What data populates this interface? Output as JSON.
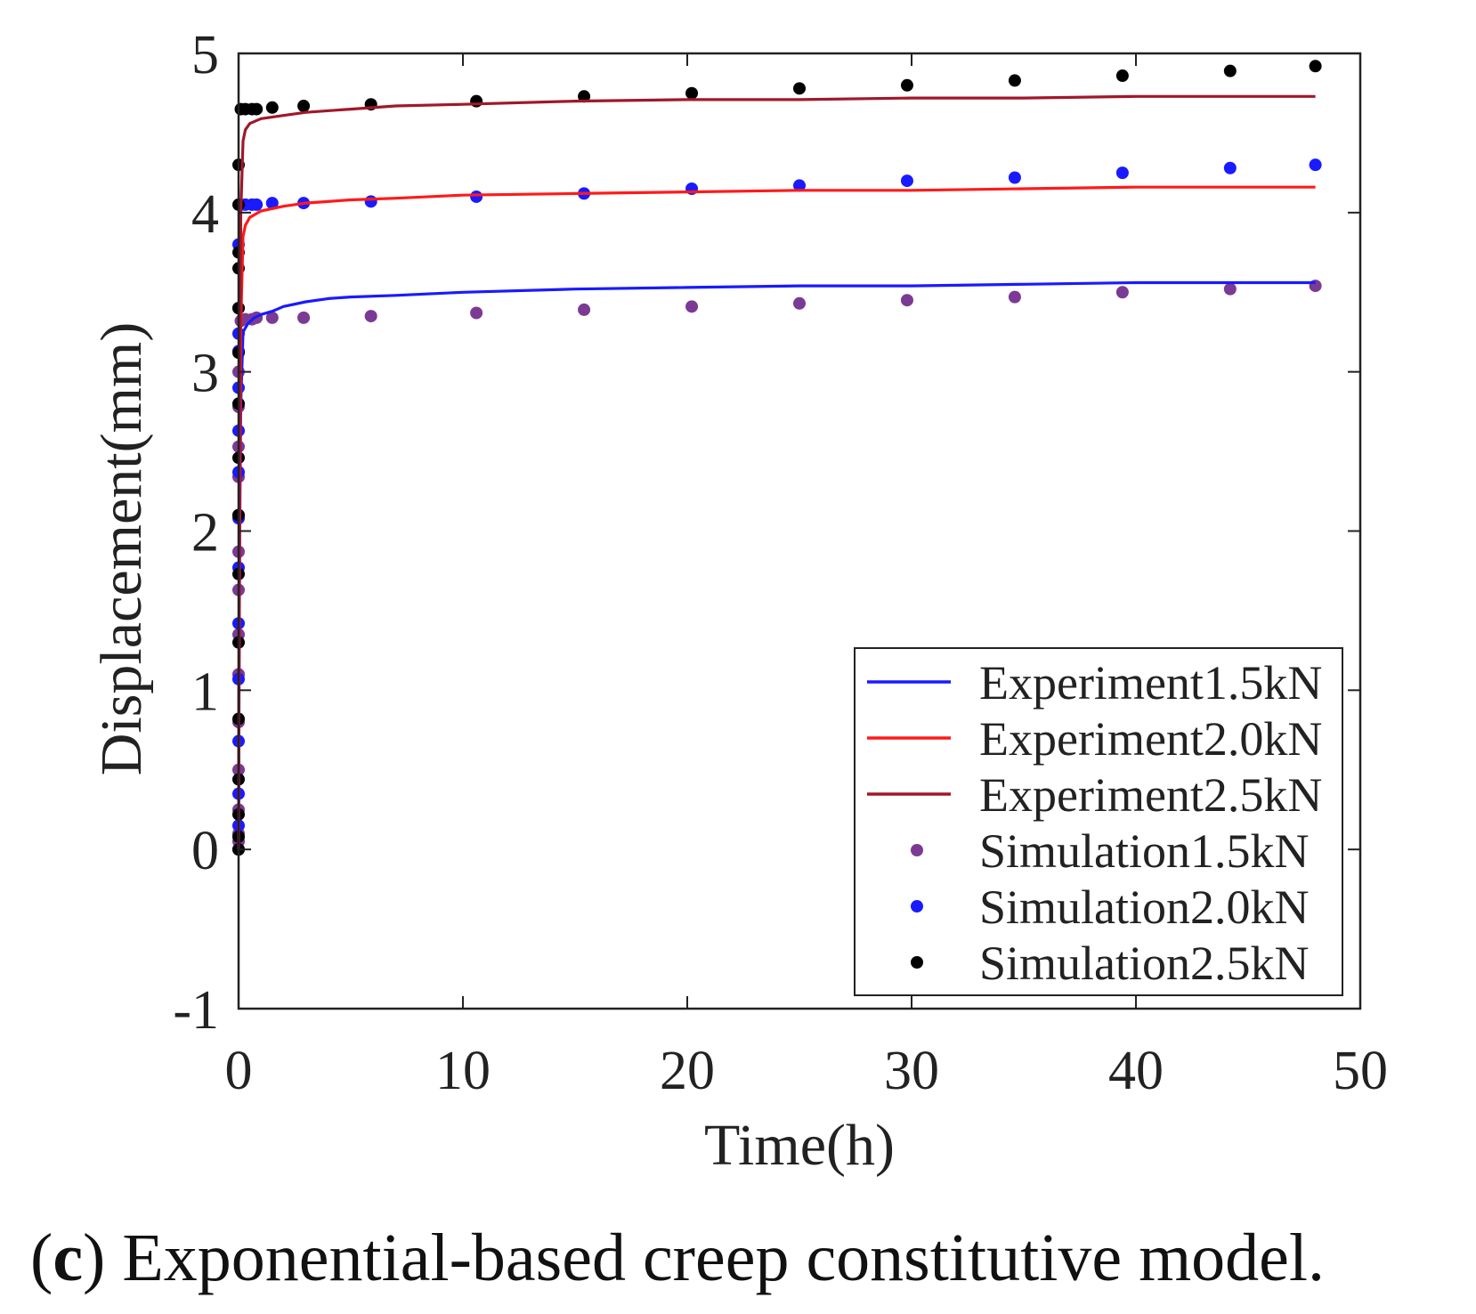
{
  "caption": {
    "open_paren": "(",
    "letter": "c",
    "close_paren": ")",
    "text": " Exponential-based creep constitutive model."
  },
  "chart_data": {
    "type": "line",
    "xlabel": "Time(h)",
    "ylabel": "Displacement(mm)",
    "xlim": [
      0,
      50
    ],
    "ylim": [
      -1,
      5
    ],
    "xticks": [
      0,
      10,
      20,
      30,
      40,
      50
    ],
    "yticks": [
      -1,
      0,
      1,
      2,
      3,
      4,
      5
    ],
    "xtick_labels": [
      "0",
      "10",
      "20",
      "30",
      "40",
      "50"
    ],
    "ytick_labels": [
      "-1",
      "0",
      "1",
      "2",
      "3",
      "4",
      "5"
    ],
    "grid": false,
    "legend_position": "bottom-right",
    "series": [
      {
        "name": "Experiment1.5kN",
        "kind": "line",
        "color": "#1a1aff",
        "x": [
          0,
          0.02,
          0.05,
          0.1,
          0.2,
          0.4,
          0.7,
          1.0,
          1.5,
          2,
          3,
          4,
          5,
          7,
          10,
          15,
          20,
          25,
          30,
          35,
          40,
          45,
          48
        ],
        "y": [
          0,
          1.0,
          2.0,
          2.8,
          3.25,
          3.3,
          3.34,
          3.36,
          3.38,
          3.41,
          3.44,
          3.46,
          3.47,
          3.48,
          3.5,
          3.52,
          3.53,
          3.54,
          3.54,
          3.55,
          3.56,
          3.56,
          3.56
        ]
      },
      {
        "name": "Experiment2.0kN",
        "kind": "line",
        "color": "#ff1a1a",
        "x": [
          0,
          0.02,
          0.05,
          0.1,
          0.2,
          0.3,
          0.5,
          1,
          2,
          3,
          5,
          7,
          10,
          15,
          20,
          25,
          30,
          35,
          40,
          45,
          48
        ],
        "y": [
          0,
          1.0,
          2.2,
          3.3,
          3.85,
          3.92,
          3.97,
          4.01,
          4.04,
          4.06,
          4.08,
          4.09,
          4.11,
          4.12,
          4.13,
          4.14,
          4.14,
          4.15,
          4.16,
          4.16,
          4.16
        ]
      },
      {
        "name": "Experiment2.5kN",
        "kind": "line",
        "color": "#a0182a",
        "x": [
          0,
          0.02,
          0.05,
          0.1,
          0.2,
          0.3,
          0.5,
          1,
          2,
          3,
          5,
          7,
          10,
          15,
          20,
          25,
          30,
          35,
          40,
          45,
          48
        ],
        "y": [
          0,
          1.2,
          2.8,
          4.0,
          4.45,
          4.52,
          4.56,
          4.59,
          4.61,
          4.63,
          4.65,
          4.67,
          4.68,
          4.7,
          4.71,
          4.71,
          4.72,
          4.72,
          4.73,
          4.73,
          4.73
        ]
      },
      {
        "name": "Simulation1.5kN",
        "kind": "scatter",
        "color": "#7b3a94",
        "x": [
          0,
          0,
          0,
          0,
          0,
          0,
          0,
          0,
          0,
          0,
          0,
          0,
          0,
          0,
          0,
          0.1,
          0.3,
          0.6,
          0.8,
          1.5,
          2.9,
          5.9,
          10.6,
          15.4,
          20.2,
          25,
          29.8,
          34.6,
          39.4,
          44.2,
          48
        ],
        "y": [
          0,
          0.05,
          0.1,
          0.25,
          0.5,
          0.8,
          1.1,
          1.35,
          1.63,
          1.87,
          2.1,
          2.34,
          2.53,
          2.78,
          3.0,
          3.32,
          3.33,
          3.33,
          3.34,
          3.34,
          3.34,
          3.35,
          3.37,
          3.39,
          3.41,
          3.43,
          3.45,
          3.47,
          3.5,
          3.52,
          3.54
        ]
      },
      {
        "name": "Simulation2.0kN",
        "kind": "scatter",
        "color": "#1a1aff",
        "x": [
          0,
          0,
          0,
          0,
          0,
          0,
          0,
          0,
          0,
          0,
          0,
          0,
          0,
          0,
          0,
          0.1,
          0.3,
          0.6,
          0.8,
          1.5,
          2.9,
          5.9,
          10.6,
          15.4,
          20.2,
          25,
          29.8,
          34.6,
          39.4,
          44.2,
          48
        ],
        "y": [
          0,
          0.15,
          0.35,
          0.68,
          1.07,
          1.42,
          1.77,
          2.08,
          2.37,
          2.63,
          2.9,
          3.13,
          3.24,
          3.4,
          3.8,
          4.05,
          4.05,
          4.05,
          4.05,
          4.06,
          4.06,
          4.07,
          4.1,
          4.12,
          4.15,
          4.17,
          4.2,
          4.22,
          4.25,
          4.28,
          4.3
        ]
      },
      {
        "name": "Simulation2.5kN",
        "kind": "scatter",
        "color": "#000000",
        "x": [
          0,
          0,
          0,
          0,
          0,
          0,
          0,
          0,
          0,
          0,
          0,
          0,
          0,
          0,
          0,
          0,
          0.1,
          0.3,
          0.6,
          0.8,
          1.5,
          2.9,
          5.9,
          10.6,
          15.4,
          20.2,
          25,
          29.8,
          34.6,
          39.4,
          44.2,
          48
        ],
        "y": [
          0,
          0.08,
          0.22,
          0.44,
          0.82,
          1.3,
          1.73,
          2.1,
          2.46,
          2.8,
          3.12,
          3.4,
          3.65,
          3.75,
          4.05,
          4.3,
          4.65,
          4.65,
          4.65,
          4.65,
          4.66,
          4.67,
          4.68,
          4.7,
          4.73,
          4.75,
          4.78,
          4.8,
          4.83,
          4.86,
          4.89,
          4.92
        ]
      }
    ]
  }
}
